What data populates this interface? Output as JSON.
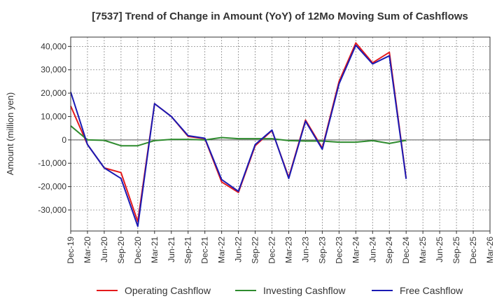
{
  "chart_data": {
    "type": "line",
    "title": "[7537]  Trend of Change in Amount (YoY) of 12Mo Moving Sum of Cashflows",
    "xlabel": "",
    "ylabel": "Amount (million yen)",
    "ylim": [
      -39000,
      44000
    ],
    "yticks": [
      40000,
      30000,
      20000,
      10000,
      0,
      -10000,
      -20000,
      -30000
    ],
    "ytick_labels": [
      "40,000",
      "30,000",
      "20,000",
      "10,000",
      "0",
      "-10,000",
      "-20,000",
      "-30,000"
    ],
    "x_tick_labels": [
      "Dec-19",
      "Mar-20",
      "Jun-20",
      "Sep-20",
      "Dec-20",
      "Mar-21",
      "Jun-21",
      "Sep-21",
      "Dec-21",
      "Mar-22",
      "Jun-22",
      "Sep-22",
      "Dec-22",
      "Mar-23",
      "Jun-23",
      "Sep-23",
      "Dec-23",
      "Mar-24",
      "Jun-24",
      "Sep-24",
      "Dec-24",
      "Mar-25",
      "Jun-25",
      "Sep-25",
      "Dec-25",
      "Mar-26"
    ],
    "grid": true,
    "legend_position": "bottom",
    "series": [
      {
        "name": "Operating Cashflow",
        "color": "#e41a1c",
        "values": [
          14500,
          -2000,
          -12000,
          -14000,
          -35000,
          15500,
          10000,
          1500,
          500,
          -18000,
          -22500,
          -2500,
          4000,
          -16000,
          8500,
          -3500,
          25000,
          41500,
          33000,
          37500,
          -16500
        ]
      },
      {
        "name": "Investing Cashflow",
        "color": "#2e8b2e",
        "values": [
          6000,
          0,
          -200,
          -2500,
          -2500,
          -300,
          200,
          200,
          0,
          1000,
          500,
          500,
          500,
          -300,
          -500,
          -500,
          -1000,
          -1000,
          -300,
          -1500,
          -200
        ]
      },
      {
        "name": "Free Cashflow",
        "color": "#1a1ab4",
        "values": [
          20500,
          -2000,
          -12000,
          -16500,
          -37000,
          15500,
          10000,
          1800,
          700,
          -17000,
          -22000,
          -2000,
          4200,
          -16500,
          8000,
          -4000,
          24000,
          40500,
          32500,
          36000,
          -16700
        ]
      }
    ]
  }
}
